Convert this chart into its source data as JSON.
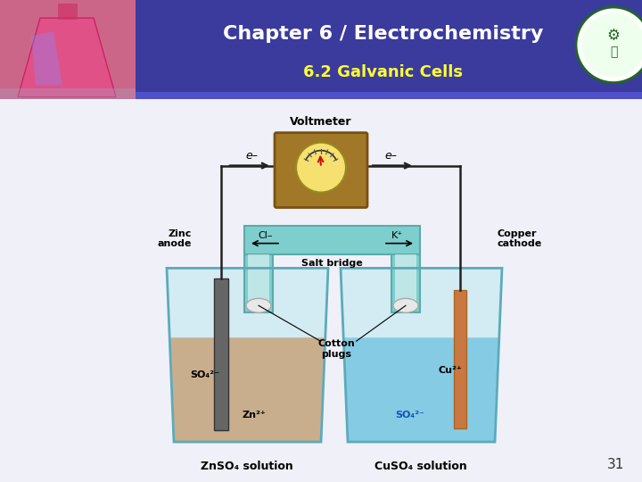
{
  "title": "Chapter 6 / Electrochemistry",
  "subtitle": "6.2 Galvanic Cells",
  "title_color": "#FFFFFF",
  "subtitle_color": "#FFFF33",
  "header_bg": "#3B3B9E",
  "page_bg": "#F0F0F8",
  "page_number": "31",
  "labels": {
    "voltmeter": "Voltmeter",
    "e_left": "e–",
    "e_right": "e–",
    "zinc_anode": "Zinc\nanode",
    "copper_cathode": "Copper\ncathode",
    "cl_text": "Cl–",
    "k_text": "K⁺",
    "salt_bridge": "Salt bridge",
    "cotton_plugs": "Cotton\nplugs",
    "so4_left": "SO₄²⁻",
    "zn2plus": "Zn²⁺",
    "cu2plus": "Cu²⁺",
    "so4_right": "SO₄²⁻",
    "znso4": "ZnSO₄ solution",
    "cuso4": "CuSO₄ solution"
  },
  "colors": {
    "left_solution": "#C8A882",
    "right_solution": "#7EC8E3",
    "beaker_fill": "#B8E8EE",
    "beaker_outline": "#5AABBB",
    "salt_bridge_body": "#7ECECE",
    "salt_bridge_edge": "#5AABAB",
    "zinc_electrode": "#666666",
    "copper_electrode": "#C87840",
    "voltmeter_body": "#A07828",
    "voltmeter_face": "#F5E070",
    "wire": "#222222",
    "cotton": "#E8E8E8",
    "cotton_edge": "#AAAAAA",
    "header_stripe": "#5050CC"
  }
}
